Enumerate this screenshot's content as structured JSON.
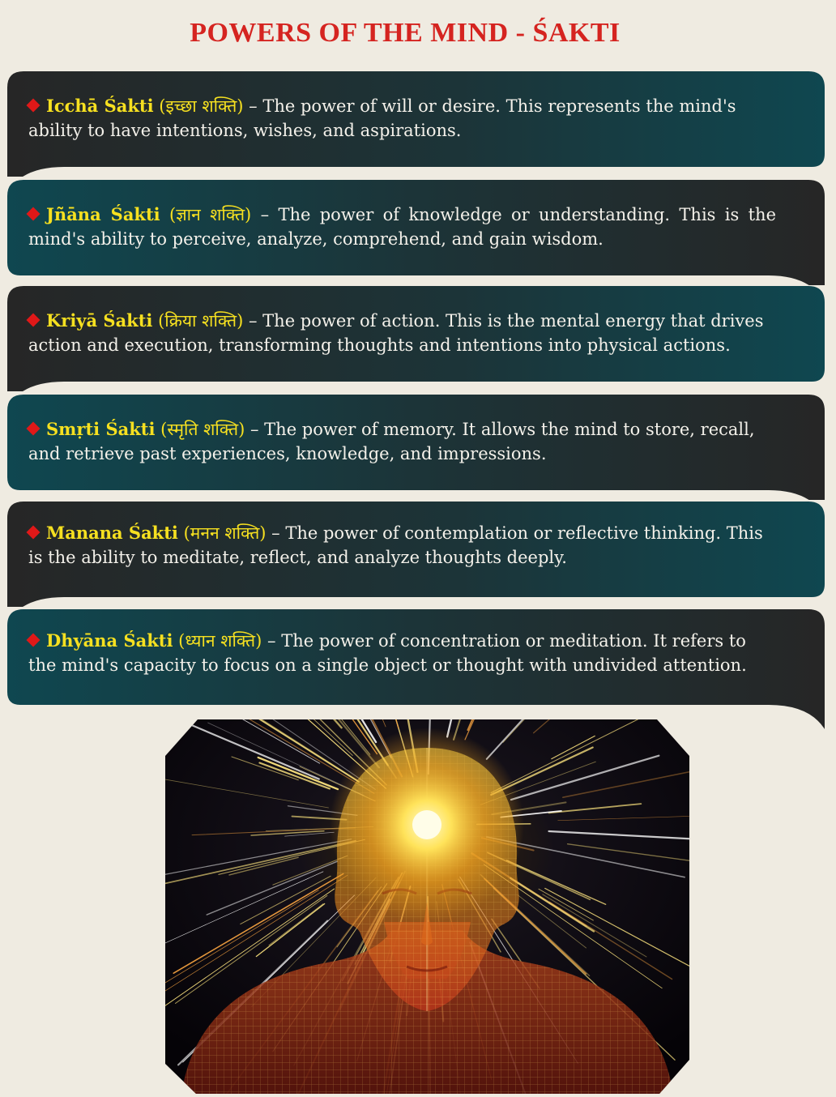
{
  "page": {
    "title": "POWERS OF THE MIND -  ŚAKTI"
  },
  "colors": {
    "background": "#efebe1",
    "title": "#d52420",
    "term": "#f6e020",
    "bullet": "#e01818",
    "banner_teal": "#0f4750",
    "banner_dark": "#262626"
  },
  "shaktis": [
    {
      "term": "Icchā Śakti",
      "sanskrit": "(इच्छा शक्ति)",
      "separator": " – ",
      "description": "The power of will or desire. This represents the mind's ability to have intentions, wishes, and aspirations."
    },
    {
      "term": "Jñāna Śakti",
      "sanskrit": "(ज्ञान शक्ति)",
      "separator": " – ",
      "description": "The power of knowledge or understanding. This is the mind's ability to perceive, analyze, comprehend, and gain wisdom."
    },
    {
      "term": "Kriyā Śakti",
      "sanskrit": "(क्रिया शक्ति)",
      "separator": " – ",
      "description": "The power of action. This is the mental energy that drives action and execution, transforming thoughts and intentions into physical actions."
    },
    {
      "term": "Smṛti Śakti",
      "sanskrit": "(स्मृति शक्ति)",
      "separator": " – ",
      "description": "The power of memory. It allows the mind to store, recall, and retrieve past experiences, knowledge, and impressions."
    },
    {
      "term": "Manana Śakti",
      "sanskrit": "(मनन शक्ति)",
      "separator": " – ",
      "description": "The power of contemplation or reflective thinking. This is the ability to meditate, reflect, and analyze thoughts deeply."
    },
    {
      "term": "Dhyāna Śakti",
      "sanskrit": "(ध्यान शक्ति)",
      "separator": " – ",
      "description": "The power of concentration or meditation. It refers to the mind's capacity to focus on a single object or thought with undivided attention."
    }
  ]
}
